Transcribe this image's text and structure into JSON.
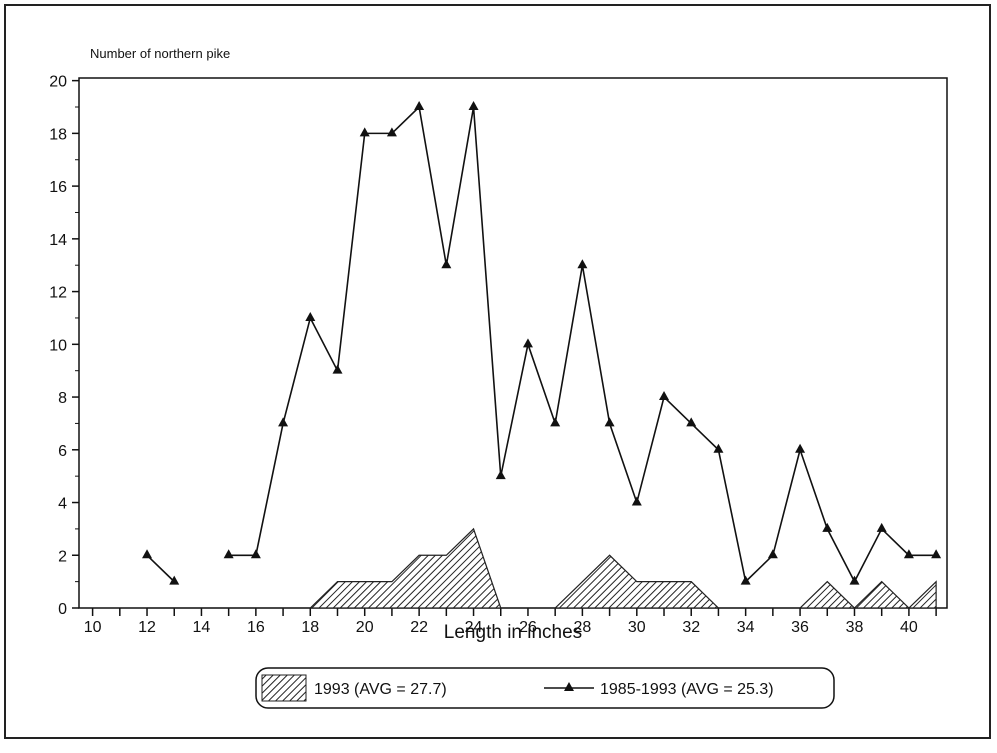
{
  "chart_data": {
    "type": "line",
    "y_label": "Number of northern pike",
    "x_label": "Length in inches",
    "x": [
      12,
      13,
      14,
      15,
      16,
      17,
      18,
      19,
      20,
      21,
      22,
      23,
      24,
      25,
      26,
      27,
      28,
      29,
      30,
      31,
      32,
      33,
      34,
      35,
      36,
      37,
      38,
      39,
      40,
      41
    ],
    "series": [
      {
        "name": "1993 (AVG = 27.7)",
        "kind": "area",
        "color": "#222222",
        "values": [
          0,
          0,
          0,
          0,
          0,
          0,
          0,
          1,
          1,
          1,
          2,
          2,
          3,
          0,
          0,
          0,
          1,
          2,
          1,
          1,
          1,
          0,
          0,
          0,
          0,
          1,
          0,
          1,
          0,
          1
        ]
      },
      {
        "name": "1985-1993 (AVG = 25.3)",
        "kind": "line",
        "color": "#111111",
        "values": [
          2,
          1,
          null,
          2,
          2,
          7,
          11,
          9,
          18,
          18,
          19,
          13,
          19,
          5,
          10,
          7,
          13,
          7,
          4,
          8,
          7,
          6,
          1,
          2,
          6,
          3,
          1,
          3,
          2,
          2
        ]
      }
    ],
    "xlim": [
      9.5,
      41.4
    ],
    "xticks": [
      10,
      12,
      14,
      16,
      18,
      20,
      22,
      24,
      26,
      28,
      30,
      32,
      34,
      36,
      38,
      40
    ],
    "ylim": [
      0,
      20.1
    ],
    "yticks": [
      0,
      2,
      4,
      6,
      8,
      10,
      12,
      14,
      16,
      18,
      20
    ]
  }
}
